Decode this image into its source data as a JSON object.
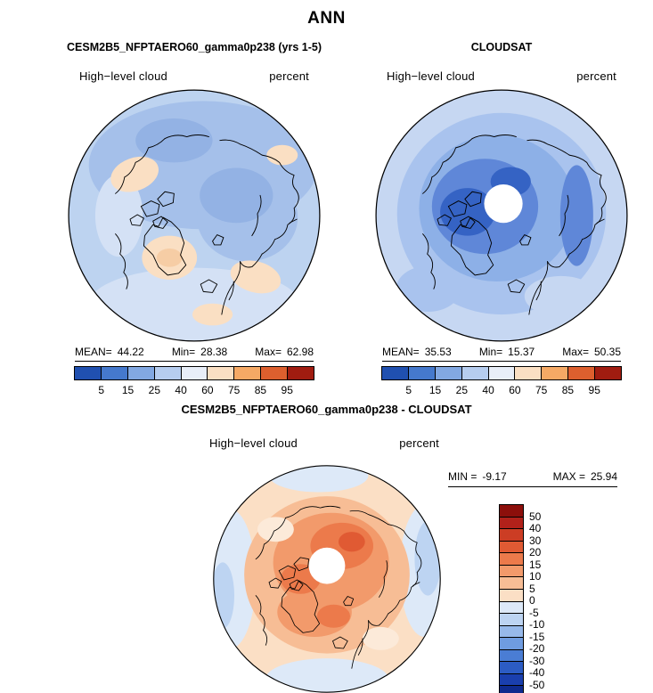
{
  "season": "ANN",
  "left_panel": {
    "title": "CESM2B5_NFPTAERO60_gamma0p238 (yrs 1-5)",
    "field": "High−level cloud",
    "units": "percent",
    "stats": {
      "mean_label": "MEAN=",
      "mean": "44.22",
      "min_label": "Min=",
      "min": "28.38",
      "max_label": "Max=",
      "max": "62.98"
    }
  },
  "right_panel": {
    "title": "CLOUDSAT",
    "field": "High−level cloud",
    "units": "percent",
    "stats": {
      "mean_label": "MEAN=",
      "mean": "35.53",
      "min_label": "Min=",
      "min": "15.37",
      "max_label": "Max=",
      "max": "50.35"
    }
  },
  "diff_panel": {
    "title": "CESM2B5_NFPTAERO60_gamma0p238 - CLOUDSAT",
    "field": "High−level cloud",
    "units": "percent",
    "stats": {
      "min_label": "MIN =",
      "min": "-9.17",
      "max_label": "MAX =",
      "max": "25.94"
    }
  },
  "chart_data": [
    {
      "type": "heatmap",
      "subtype": "north-polar-stereographic-map",
      "title": "CESM2B5_NFPTAERO60_gamma0p238 (yrs 1-5)",
      "season": "ANN",
      "variable": "High−level cloud",
      "units": "percent",
      "stats": {
        "mean": 44.22,
        "min": 28.38,
        "max": 62.98
      },
      "colorbar": {
        "orientation": "horizontal",
        "levels": [
          5,
          15,
          25,
          40,
          60,
          75,
          85,
          95
        ],
        "colors": [
          "#2050b0",
          "#4579cd",
          "#82a8e2",
          "#b6cdef",
          "#e8eef8",
          "#fadfc3",
          "#f5a965",
          "#dd5f2e",
          "#a01c10"
        ]
      }
    },
    {
      "type": "heatmap",
      "subtype": "north-polar-stereographic-map",
      "title": "CLOUDSAT",
      "season": "ANN",
      "variable": "High−level cloud",
      "units": "percent",
      "stats": {
        "mean": 35.53,
        "min": 15.37,
        "max": 50.35
      },
      "colorbar": {
        "orientation": "horizontal",
        "levels": [
          5,
          15,
          25,
          40,
          60,
          75,
          85,
          95
        ],
        "colors": [
          "#2050b0",
          "#4579cd",
          "#82a8e2",
          "#b6cdef",
          "#e8eef8",
          "#fadfc3",
          "#f5a965",
          "#dd5f2e",
          "#a01c10"
        ]
      }
    },
    {
      "type": "heatmap",
      "subtype": "north-polar-stereographic-map-difference",
      "title": "CESM2B5_NFPTAERO60_gamma0p238 - CLOUDSAT",
      "season": "ANN",
      "variable": "High−level cloud",
      "units": "percent",
      "stats": {
        "min": -9.17,
        "max": 25.94
      },
      "colorbar": {
        "orientation": "vertical",
        "levels": [
          50,
          40,
          30,
          20,
          15,
          10,
          5,
          0,
          -5,
          -10,
          -15,
          -20,
          -30,
          -40,
          -50
        ],
        "colors": [
          "#8c0f0b",
          "#b1211a",
          "#cc3d24",
          "#e05a33",
          "#ec7a4b",
          "#f29a6b",
          "#f7bd95",
          "#fbdfc5",
          "#dde9f8",
          "#bdd4f2",
          "#97b9ea",
          "#6f9ce0",
          "#4a7dd4",
          "#2c5cc4",
          "#1a3fae",
          "#0e2a8e"
        ]
      }
    }
  ]
}
